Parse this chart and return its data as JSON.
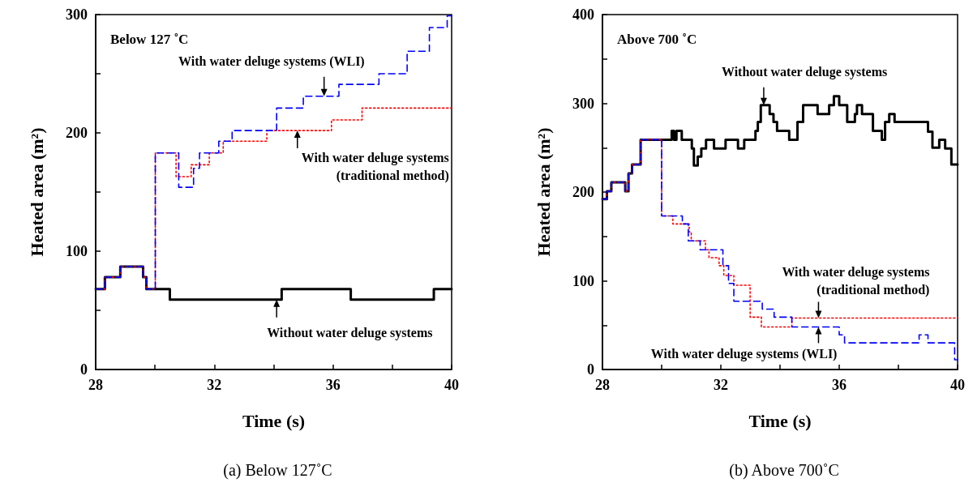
{
  "chart_data": [
    {
      "type": "step",
      "title": "(a) Below 127˚C",
      "xlabel": "Time (s)",
      "ylabel": "Heated area (m²)",
      "marker": "none",
      "xlim": [
        28,
        40
      ],
      "xticks": [
        28,
        {
          "value": 30,
          "label": null
        },
        32,
        {
          "value": 34,
          "label": null
        },
        36,
        {
          "value": 38,
          "label": null
        },
        40
      ],
      "ylim": [
        0,
        300
      ],
      "yticks": [
        0,
        {
          "value": 50,
          "label": null
        },
        100,
        {
          "value": 150,
          "label": null
        },
        200,
        {
          "value": 250,
          "label": null
        },
        300
      ],
      "series": [
        {
          "color": "#000000",
          "line_style": "solid",
          "x": [
            28,
            28.31,
            28.83,
            29.6,
            29.71,
            30.5,
            34.27,
            36.6,
            39.4,
            40
          ],
          "values": [
            68,
            78,
            87,
            78,
            68,
            59,
            68,
            59,
            68,
            68
          ]
        },
        {
          "color": "#ff0000",
          "line_style": "dotted",
          "x": [
            28,
            28.31,
            28.83,
            29.6,
            29.71,
            30.01,
            30.71,
            31.22,
            31.83,
            32.3,
            33.77,
            35.95,
            36.98,
            40
          ],
          "values": [
            68,
            78,
            87,
            78,
            68,
            183,
            163,
            173,
            183,
            193,
            202,
            211,
            221,
            221
          ]
        },
        {
          "color": "#0000ff",
          "line_style": "dashed",
          "x": [
            28,
            28.31,
            28.83,
            29.6,
            29.71,
            30.01,
            30.8,
            31.3,
            31.5,
            32.15,
            32.6,
            34.1,
            35.0,
            36.2,
            37.55,
            38.5,
            39.25,
            39.85,
            40
          ],
          "values": [
            68,
            78,
            87,
            78,
            68,
            183,
            154,
            170,
            183,
            193,
            202,
            221,
            231,
            241,
            250,
            269,
            289,
            299,
            299
          ]
        }
      ],
      "annotations": [
        "Below 127 ˚C",
        {
          "text": "With water deluge systems (WLI)",
          "x": 35.7,
          "y": 231
        },
        {
          "text": "With water deluge systems\n(traditional method)",
          "x": 34.8,
          "y": 202
        },
        {
          "text": "Without water deluge systems",
          "x": 34.1,
          "y": 59
        }
      ]
    },
    {
      "type": "step",
      "title": "(b) Above 700˚C",
      "xlabel": "Time (s)",
      "ylabel": "Heated area (m²)",
      "marker": "none",
      "xlim": [
        28,
        40
      ],
      "xticks": [
        28,
        {
          "value": 30,
          "label": null
        },
        32,
        {
          "value": 34,
          "label": null
        },
        36,
        {
          "value": 38,
          "label": null
        },
        40
      ],
      "ylim": [
        0,
        400
      ],
      "yticks": [
        0,
        {
          "value": 50,
          "label": null
        },
        100,
        {
          "value": 150,
          "label": null
        },
        200,
        {
          "value": 250,
          "label": null
        },
        300,
        {
          "value": 350,
          "label": null
        },
        400
      ],
      "series": [
        {
          "color": "#000000",
          "line_style": "solid",
          "x": [
            28,
            28.15,
            28.3,
            28.77,
            28.88,
            29.0,
            29.29,
            30.34,
            30.42,
            30.5,
            30.68,
            31.02,
            31.09,
            31.22,
            31.34,
            31.5,
            31.77,
            32.16,
            32.58,
            32.79,
            33.17,
            33.25,
            33.35,
            33.65,
            33.78,
            33.9,
            34.31,
            34.59,
            34.78,
            35.27,
            35.66,
            35.82,
            36.0,
            36.27,
            36.53,
            36.6,
            36.77,
            37.14,
            37.44,
            37.55,
            37.69,
            37.87,
            39.0,
            39.15,
            39.38,
            39.58,
            39.79,
            40
          ],
          "values": [
            192,
            201,
            211,
            201,
            221,
            231,
            259,
            269,
            259,
            269,
            259,
            249,
            230,
            240,
            249,
            259,
            249,
            259,
            249,
            259,
            269,
            279,
            298,
            288,
            279,
            269,
            259,
            279,
            298,
            288,
            298,
            308,
            298,
            279,
            288,
            298,
            288,
            269,
            259,
            279,
            288,
            279,
            268,
            250,
            259,
            249,
            231,
            231
          ]
        },
        {
          "color": "#ff0000",
          "line_style": "dotted",
          "x": [
            28,
            28.15,
            28.3,
            28.77,
            28.88,
            29.0,
            29.29,
            30.0,
            30.38,
            30.93,
            31.0,
            31.48,
            31.6,
            31.94,
            32.1,
            32.44,
            32.99,
            33.37,
            34.4,
            40
          ],
          "values": [
            192,
            201,
            211,
            201,
            221,
            231,
            259,
            173,
            164,
            155,
            145,
            135,
            126,
            117,
            106,
            95,
            59,
            48,
            58,
            58
          ]
        },
        {
          "color": "#0000ff",
          "line_style": "dashed",
          "x": [
            28,
            28.15,
            28.3,
            28.77,
            28.88,
            29.0,
            29.29,
            30.0,
            30.7,
            30.9,
            31.3,
            32.07,
            32.26,
            32.44,
            33.4,
            33.8,
            34.4,
            36.0,
            36.18,
            38.7,
            39.0,
            39.9,
            40
          ],
          "values": [
            192,
            201,
            211,
            201,
            221,
            231,
            259,
            173,
            164,
            145,
            135,
            117,
            97,
            77,
            68,
            59,
            48,
            39,
            30,
            39,
            30,
            11,
            11
          ]
        }
      ],
      "annotations": [
        "Above 700 ˚C",
        {
          "text": "Without water deluge systems",
          "x": 33.45,
          "y": 298
        },
        {
          "text": "With water deluge systems\n(traditional method)",
          "x": 35.3,
          "y": 58
        },
        {
          "text": "With water deluge systems (WLI)",
          "x": 35.3,
          "y": 48
        }
      ]
    }
  ]
}
